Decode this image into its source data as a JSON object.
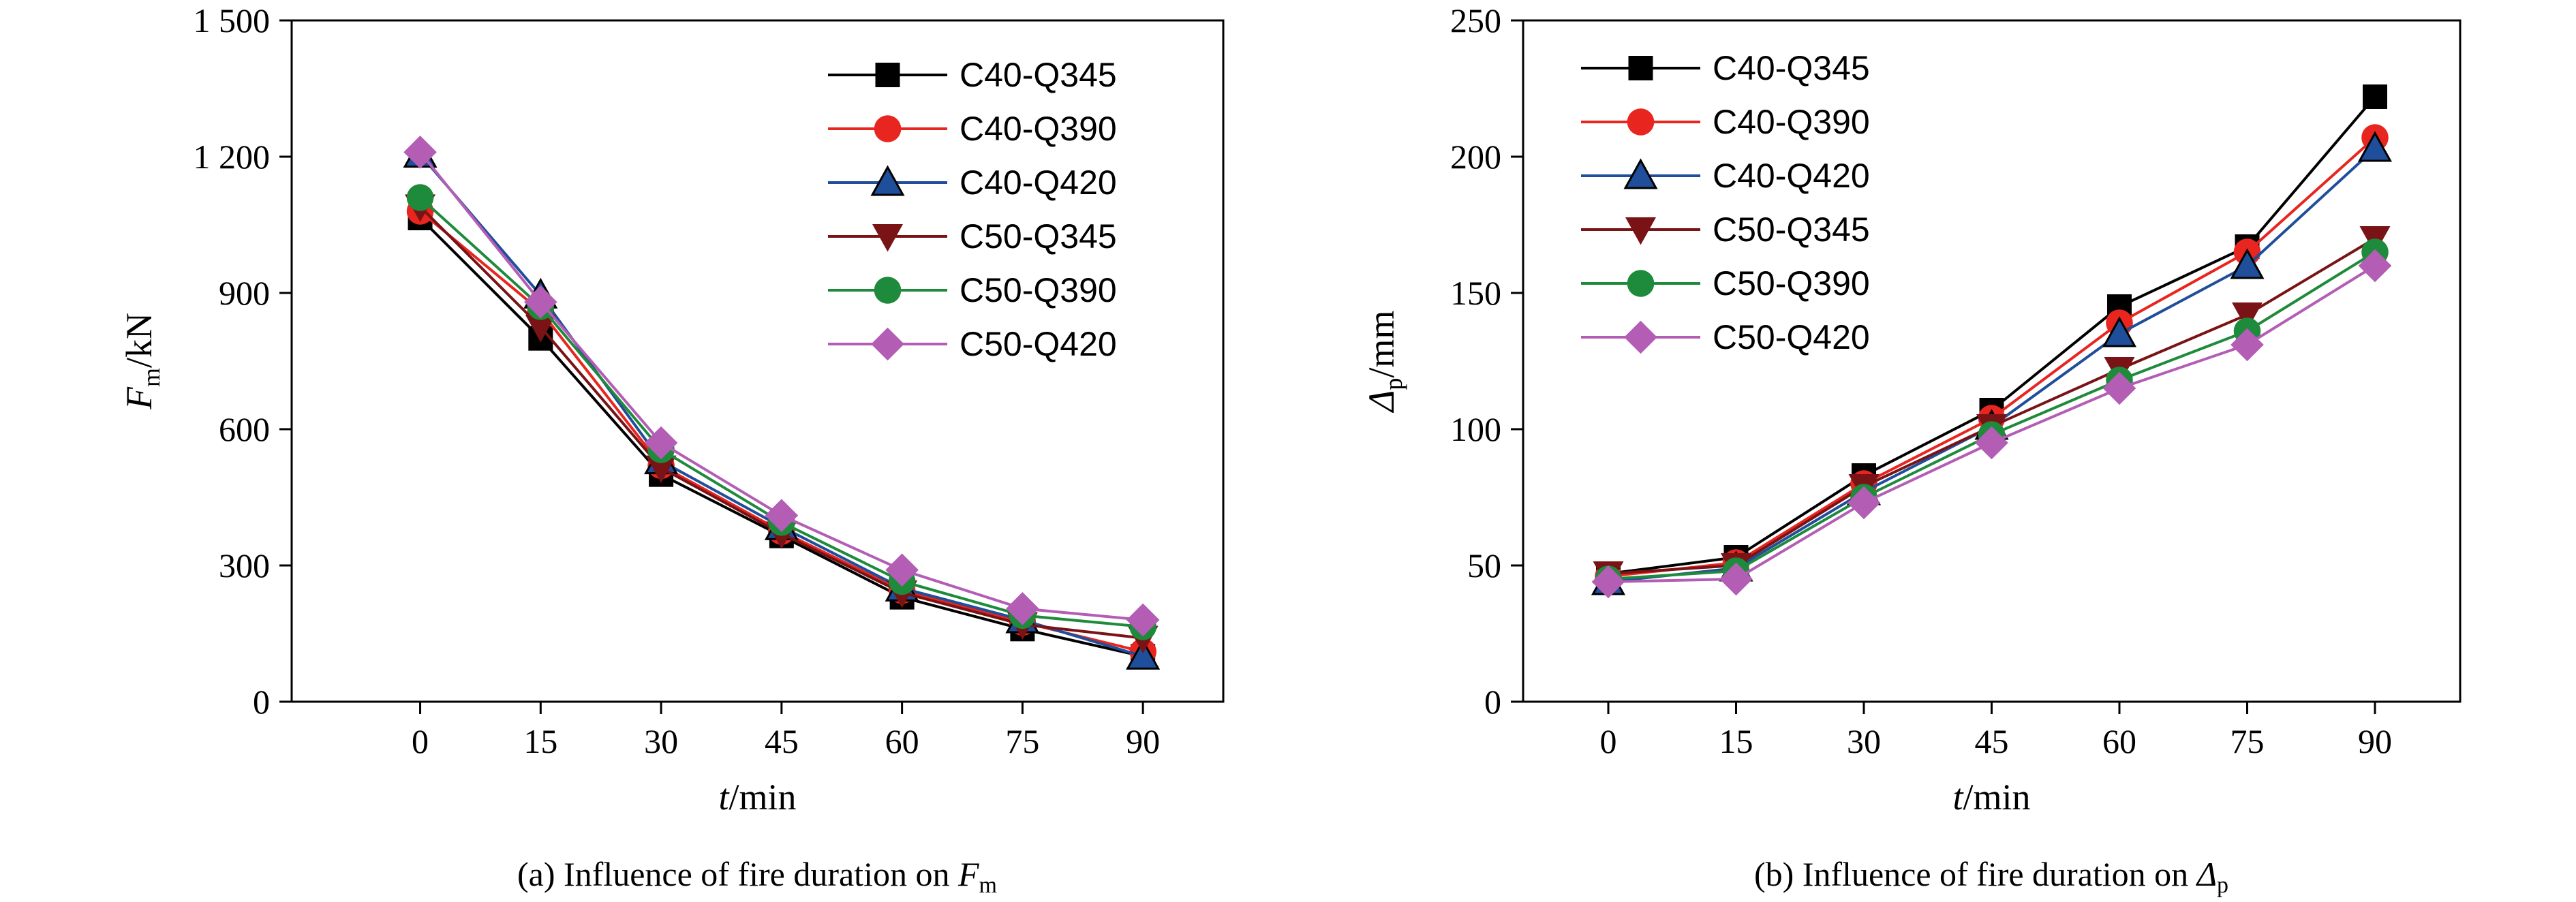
{
  "chart_data": [
    {
      "type": "line",
      "xlabel_var": "t",
      "xlabel_unit": "/min",
      "ylabel_var": "F",
      "ylabel_sub": "m",
      "ylabel_unit": "/kN",
      "caption_prefix": "(a) Influence of fire duration on ",
      "caption_var": "F",
      "caption_sub": "m",
      "x": [
        0,
        15,
        30,
        45,
        60,
        75,
        90
      ],
      "xlim": [
        -16,
        100
      ],
      "ylim": [
        0,
        1500
      ],
      "xticks": [
        "0",
        "15",
        "30",
        "45",
        "60",
        "75",
        "90"
      ],
      "yticks": [
        {
          "v": 0,
          "label": "0"
        },
        {
          "v": 300,
          "label": "300"
        },
        {
          "v": 600,
          "label": "600"
        },
        {
          "v": 900,
          "label": "900"
        },
        {
          "v": 1200,
          "label": "1 200"
        },
        {
          "v": 1500,
          "label": "1 500"
        }
      ],
      "legend_position": "top-right",
      "series": [
        {
          "name": "C40-Q345",
          "color": "#000000",
          "marker": "square",
          "values": [
            1065,
            800,
            500,
            365,
            230,
            160,
            100
          ]
        },
        {
          "name": "C40-Q390",
          "color": "#e8251f",
          "marker": "circle",
          "values": [
            1080,
            860,
            520,
            375,
            245,
            175,
            110
          ]
        },
        {
          "name": "C40-Q420",
          "color": "#1f4e9b",
          "marker": "triangle-up",
          "values": [
            1205,
            895,
            530,
            385,
            250,
            180,
            100
          ]
        },
        {
          "name": "C50-Q345",
          "color": "#7a1315",
          "marker": "triangle-down",
          "values": [
            1090,
            825,
            515,
            370,
            240,
            170,
            140
          ]
        },
        {
          "name": "C50-Q390",
          "color": "#1e8a3b",
          "marker": "circle",
          "values": [
            1110,
            870,
            555,
            395,
            265,
            190,
            165
          ]
        },
        {
          "name": "C50-Q420",
          "color": "#b35db5",
          "marker": "diamond",
          "values": [
            1210,
            880,
            570,
            410,
            290,
            205,
            180
          ]
        }
      ]
    },
    {
      "type": "line",
      "xlabel_var": "t",
      "xlabel_unit": "/min",
      "ylabel_var": "Δ",
      "ylabel_sub": "p",
      "ylabel_unit": "/mm",
      "caption_prefix": "(b) Influence of fire duration on ",
      "caption_var": "Δ",
      "caption_sub": "p",
      "x": [
        0,
        15,
        30,
        45,
        60,
        75,
        90
      ],
      "xlim": [
        -10,
        100
      ],
      "ylim": [
        0,
        250
      ],
      "xticks": [
        "0",
        "15",
        "30",
        "45",
        "60",
        "75",
        "90"
      ],
      "yticks": [
        {
          "v": 0,
          "label": "0"
        },
        {
          "v": 50,
          "label": "50"
        },
        {
          "v": 100,
          "label": "100"
        },
        {
          "v": 150,
          "label": "150"
        },
        {
          "v": 200,
          "label": "200"
        },
        {
          "v": 250,
          "label": "250"
        }
      ],
      "legend_position": "top-left",
      "series": [
        {
          "name": "C40-Q345",
          "color": "#000000",
          "marker": "square",
          "values": [
            47,
            53,
            83,
            107,
            145,
            167,
            222
          ]
        },
        {
          "name": "C40-Q390",
          "color": "#e8251f",
          "marker": "circle",
          "values": [
            46,
            51,
            80,
            104,
            139,
            165,
            207
          ]
        },
        {
          "name": "C40-Q420",
          "color": "#1f4e9b",
          "marker": "triangle-up",
          "values": [
            44,
            49,
            77,
            101,
            135,
            160,
            203
          ]
        },
        {
          "name": "C50-Q345",
          "color": "#7a1315",
          "marker": "triangle-down",
          "values": [
            47,
            50,
            79,
            101,
            122,
            142,
            170
          ]
        },
        {
          "name": "C50-Q390",
          "color": "#1e8a3b",
          "marker": "circle",
          "values": [
            45,
            48,
            75,
            98,
            118,
            136,
            165
          ]
        },
        {
          "name": "C50-Q420",
          "color": "#b35db5",
          "marker": "diamond",
          "values": [
            44,
            45,
            73,
            95,
            115,
            131,
            160
          ]
        }
      ]
    }
  ]
}
